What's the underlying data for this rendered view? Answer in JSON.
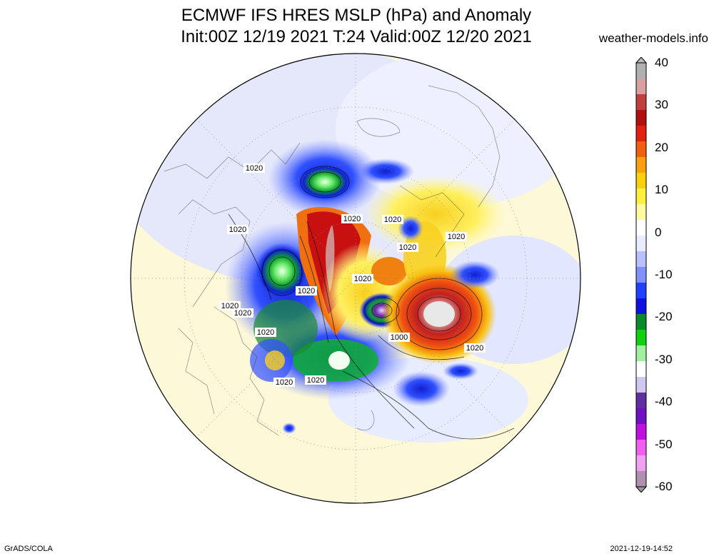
{
  "title": {
    "line1": "ECMWF IFS HRES MSLP (hPa) and Anomaly",
    "line2": "Init:00Z 12/19 2021 T:24 Valid:00Z 12/20 2021"
  },
  "site": "weather-models.info",
  "credit": "GrADS/COLA",
  "timestamp": "2021-12-19-14:52",
  "colorbar": {
    "labels": [
      "40",
      "30",
      "20",
      "10",
      "0",
      "-10",
      "-20",
      "-30",
      "-40",
      "-50",
      "-60"
    ],
    "colors": [
      "#b0b0b0",
      "#d8a0a0",
      "#c04040",
      "#b01010",
      "#e02010",
      "#f06010",
      "#f8a010",
      "#f8d010",
      "#fff040",
      "#fffaa0",
      "#ffffff",
      "#e8ecff",
      "#b8c0ff",
      "#8090ff",
      "#2040ff",
      "#1010e0",
      "#0a8a2a",
      "#10d010",
      "#a0f0a0",
      "#ffffff",
      "#d0c8f0",
      "#6030a0",
      "#7010c0",
      "#c010e0",
      "#f060f0",
      "#f0a0f0",
      "#b090b0"
    ]
  },
  "map": {
    "contour_labels": [
      "1020",
      "1020",
      "1020",
      "1020",
      "1020",
      "1020",
      "1020",
      "1020",
      "1020",
      "1020",
      "1020",
      "1020",
      "1020",
      "1020",
      "1000",
      "1020"
    ],
    "colors": {
      "background": "#fdf8d8",
      "light_blue": "#dde4ff",
      "blue": "#3050ff",
      "deep_blue": "#1420d0",
      "green": "#10c020",
      "yellow": "#f8e020",
      "orange": "#f08010",
      "red": "#d01010",
      "light_red": "#d89090"
    }
  }
}
